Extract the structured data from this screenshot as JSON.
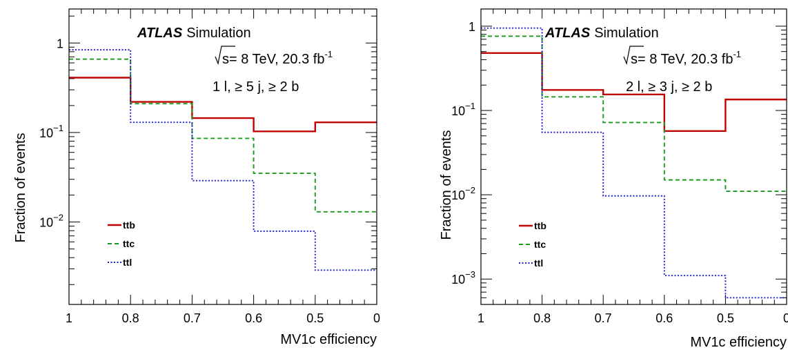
{
  "chart_data": [
    {
      "type": "line",
      "step": true,
      "log_y": true,
      "ylim": [
        0.0012,
        2.4
      ],
      "xlabel": "MV1c efficiency",
      "ylabel": "Fraction of events",
      "x_categories": [
        "1",
        "0.8",
        "0.7",
        "0.6",
        "0.5",
        "0"
      ],
      "y_ticks": [
        {
          "value": 0.01,
          "base": "10",
          "exp": "−2"
        },
        {
          "value": 0.1,
          "base": "10",
          "exp": "−1"
        },
        {
          "value": 1,
          "base": "1",
          "exp": ""
        }
      ],
      "annotations": {
        "experiment": "ATLAS",
        "label": "Simulation",
        "energy": "s= 8 TeV, 20.3 fb",
        "energy_exp": "-1",
        "selection": "1 l, ≥ 5 j, ≥ 2 b"
      },
      "legend_placement": "bottom-left",
      "series": [
        {
          "name": "ttb",
          "color": "#c00000",
          "dash": "solid",
          "values": [
            0.41,
            0.22,
            0.145,
            0.103,
            0.13
          ]
        },
        {
          "name": "ttc",
          "color": "#1a9a1a",
          "dash": "dashed",
          "values": [
            0.66,
            0.21,
            0.086,
            0.035,
            0.013
          ]
        },
        {
          "name": "ttl",
          "color": "#1a1acc",
          "dash": "dotted",
          "values": [
            0.84,
            0.13,
            0.029,
            0.0079,
            0.0029
          ]
        }
      ]
    },
    {
      "type": "line",
      "step": true,
      "log_y": true,
      "ylim": [
        0.0005,
        1.6
      ],
      "xlabel": "MV1c efficiency",
      "ylabel": "Fraction of events",
      "x_categories": [
        "1",
        "0.8",
        "0.7",
        "0.6",
        "0.5",
        "0"
      ],
      "y_ticks": [
        {
          "value": 0.001,
          "base": "10",
          "exp": "−3"
        },
        {
          "value": 0.01,
          "base": "10",
          "exp": "−2"
        },
        {
          "value": 0.1,
          "base": "10",
          "exp": "−1"
        },
        {
          "value": 1,
          "base": "1",
          "exp": ""
        }
      ],
      "annotations": {
        "experiment": "ATLAS",
        "label": "Simulation",
        "energy": "s= 8 TeV, 20.3 fb",
        "energy_exp": "-1",
        "selection": "2 l, ≥ 3 j, ≥ 2 b"
      },
      "legend_placement": "bottom-left",
      "series": [
        {
          "name": "ttb",
          "color": "#c00000",
          "dash": "solid",
          "values": [
            0.48,
            0.175,
            0.155,
            0.057,
            0.135
          ]
        },
        {
          "name": "ttc",
          "color": "#1a9a1a",
          "dash": "dashed",
          "values": [
            0.76,
            0.145,
            0.072,
            0.015,
            0.011
          ]
        },
        {
          "name": "ttl",
          "color": "#1a1acc",
          "dash": "dotted",
          "values": [
            0.95,
            0.055,
            0.0097,
            0.0011,
            0.0006
          ]
        }
      ]
    }
  ]
}
